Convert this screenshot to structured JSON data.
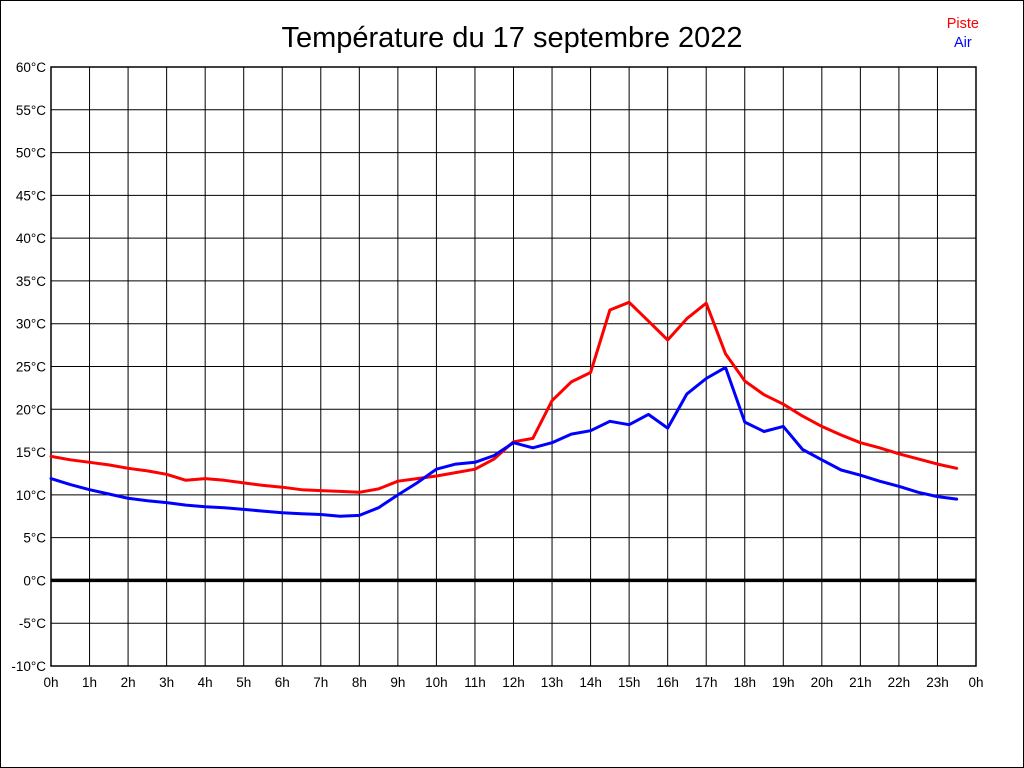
{
  "title": "Température du 17 septembre 2022",
  "legend": [
    {
      "label": "Piste",
      "color": "#ff0000"
    },
    {
      "label": "Air",
      "color": "#0000ff"
    }
  ],
  "chart_data": {
    "type": "line",
    "title": "Température du 17 septembre 2022",
    "xlabel": "",
    "ylabel": "",
    "xlim": [
      0,
      24
    ],
    "ylim": [
      -10,
      60
    ],
    "grid": true,
    "zero_line_bold": true,
    "legend_position": "top-right",
    "x_tick_labels": [
      "0h",
      "1h",
      "2h",
      "3h",
      "4h",
      "5h",
      "6h",
      "7h",
      "8h",
      "9h",
      "10h",
      "11h",
      "12h",
      "13h",
      "14h",
      "15h",
      "16h",
      "17h",
      "18h",
      "19h",
      "20h",
      "21h",
      "22h",
      "23h",
      "0h"
    ],
    "y_tick_labels": [
      "60°C",
      "55°C",
      "50°C",
      "45°C",
      "40°C",
      "35°C",
      "30°C",
      "25°C",
      "20°C",
      "15°C",
      "10°C",
      "5°C",
      "0°C",
      "-5°C",
      "-10°C"
    ],
    "x_unit": "hour of day",
    "y_unit": "°C",
    "x": [
      0,
      0.5,
      1,
      1.5,
      2,
      2.5,
      3,
      3.5,
      4,
      4.5,
      5,
      5.5,
      6,
      6.5,
      7,
      7.5,
      8,
      8.5,
      9,
      9.5,
      10,
      10.5,
      11,
      11.5,
      12,
      12.5,
      13,
      13.5,
      14,
      14.5,
      15,
      15.5,
      16,
      16.5,
      17,
      17.5,
      18,
      18.5,
      19,
      19.5,
      20,
      20.5,
      21,
      21.5,
      22,
      22.5,
      23,
      23.5
    ],
    "series": [
      {
        "name": "Piste",
        "color": "#ff0000",
        "values": [
          14.5,
          14.1,
          13.8,
          13.5,
          13.1,
          12.8,
          12.4,
          11.7,
          11.9,
          11.7,
          11.4,
          11.1,
          10.9,
          10.6,
          10.5,
          10.4,
          10.3,
          10.7,
          11.6,
          11.9,
          12.2,
          12.6,
          13.0,
          14.2,
          16.2,
          16.6,
          21.0,
          23.2,
          24.3,
          31.6,
          32.5,
          30.3,
          28.1,
          30.6,
          32.4,
          26.5,
          23.3,
          21.7,
          20.6,
          19.2,
          18.0,
          17.0,
          16.1,
          15.5,
          14.8,
          14.2,
          13.6,
          13.1
        ]
      },
      {
        "name": "Air",
        "color": "#0000ff",
        "values": [
          11.9,
          11.2,
          10.6,
          10.1,
          9.6,
          9.3,
          9.1,
          8.8,
          8.6,
          8.5,
          8.3,
          8.1,
          7.9,
          7.8,
          7.7,
          7.5,
          7.6,
          8.5,
          10.0,
          11.4,
          13.0,
          13.6,
          13.8,
          14.6,
          16.1,
          15.5,
          16.1,
          17.1,
          17.5,
          18.6,
          18.2,
          19.4,
          17.8,
          21.8,
          23.6,
          24.9,
          18.5,
          17.4,
          18.0,
          15.3,
          14.1,
          12.9,
          12.3,
          11.6,
          11.0,
          10.3,
          9.8,
          9.5
        ]
      }
    ]
  }
}
